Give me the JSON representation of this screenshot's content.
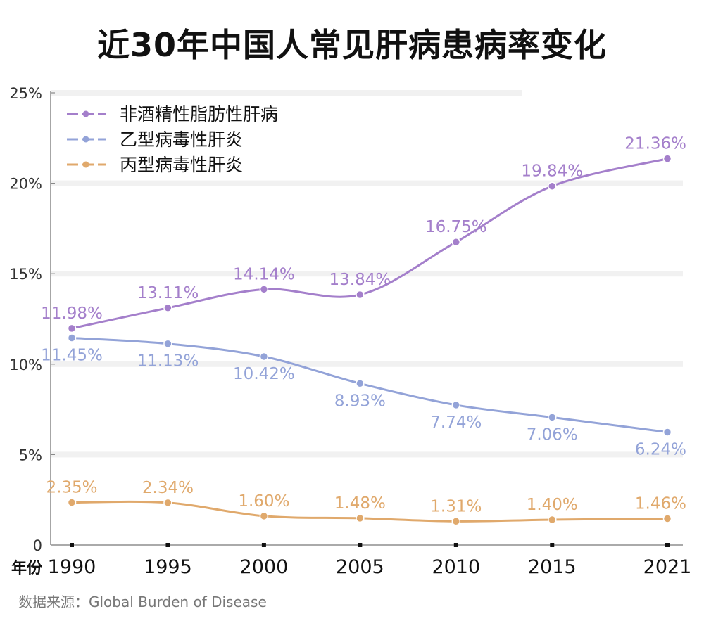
{
  "chart_data": {
    "type": "line",
    "title": "近30年中国人常见肝病患病率变化",
    "xlabel": "年份",
    "ylabel": "",
    "x": [
      1990,
      1995,
      2000,
      2005,
      2010,
      2015,
      2021
    ],
    "x_tick_labels": [
      "1990",
      "1995",
      "2000",
      "2005",
      "2010",
      "2015",
      "2021"
    ],
    "y_tick_labels": [
      "0",
      "5%",
      "10%",
      "15%",
      "20%",
      "25%"
    ],
    "ylim": [
      0,
      25
    ],
    "grid": "horizontal",
    "legend_position": "top-left",
    "series": [
      {
        "name": "非酒精性脂肪性肝病",
        "color": "#a47fcb",
        "values": [
          11.98,
          13.11,
          14.14,
          13.84,
          16.75,
          19.84,
          21.36
        ],
        "labels": [
          "11.98%",
          "13.11%",
          "14.14%",
          "13.84%",
          "16.75%",
          "19.84%",
          "21.36%"
        ],
        "label_side": "above"
      },
      {
        "name": "乙型病毒性肝炎",
        "color": "#93a3d8",
        "values": [
          11.45,
          11.13,
          10.42,
          8.93,
          7.74,
          7.06,
          6.24
        ],
        "labels": [
          "11.45%",
          "11.13%",
          "10.42%",
          "8.93%",
          "7.74%",
          "7.06%",
          "6.24%"
        ],
        "label_side": "below"
      },
      {
        "name": "丙型病毒性肝炎",
        "color": "#e0a96c",
        "values": [
          2.35,
          2.34,
          1.6,
          1.48,
          1.31,
          1.4,
          1.46
        ],
        "labels": [
          "2.35%",
          "2.34%",
          "1.60%",
          "1.48%",
          "1.31%",
          "1.40%",
          "1.46%"
        ],
        "label_side": "above"
      }
    ]
  },
  "source": "数据来源：Global Burden of Disease"
}
